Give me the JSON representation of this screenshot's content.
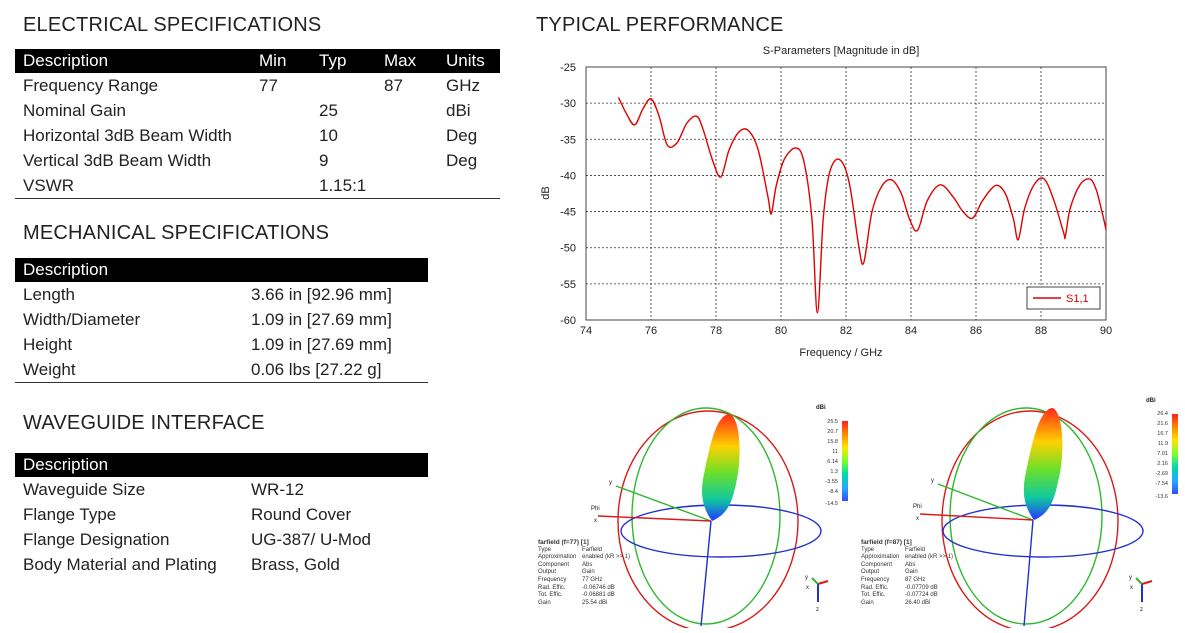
{
  "electrical": {
    "title": "ELECTRICAL SPECIFICATIONS",
    "headers": [
      "Description",
      "Min",
      "Typ",
      "Max",
      "Units"
    ],
    "rows": [
      [
        "Frequency Range",
        "77",
        "",
        "87",
        "GHz"
      ],
      [
        "Nominal Gain",
        "",
        "25",
        "",
        "dBi"
      ],
      [
        "Horizontal 3dB Beam Width",
        "",
        "10",
        "",
        "Deg"
      ],
      [
        "Vertical 3dB Beam Width",
        "",
        "9",
        "",
        "Deg"
      ],
      [
        "VSWR",
        "",
        "1.15:1",
        "",
        ""
      ]
    ]
  },
  "mechanical": {
    "title": "MECHANICAL SPECIFICATIONS",
    "header": "Description",
    "rows": [
      [
        "Length",
        "3.66 in [92.96 mm]"
      ],
      [
        "Width/Diameter",
        "1.09 in [27.69 mm]"
      ],
      [
        "Height",
        "1.09 in [27.69 mm]"
      ],
      [
        "Weight",
        "0.06 lbs [27.22 g]"
      ]
    ]
  },
  "waveguide": {
    "title": "WAVEGUIDE INTERFACE",
    "header": "Description",
    "rows": [
      [
        "Waveguide Size",
        "WR-12"
      ],
      [
        "Flange Type",
        "Round Cover"
      ],
      [
        "Flange Designation",
        "UG-387/ U-Mod"
      ],
      [
        "Body Material and Plating",
        "Brass, Gold"
      ]
    ]
  },
  "performance": {
    "title": "TYPICAL PERFORMANCE"
  },
  "chart_data": {
    "type": "line",
    "title": "S-Parameters [Magnitude in dB]",
    "xlabel": "Frequency / GHz",
    "ylabel": "dB",
    "xlim": [
      74,
      90
    ],
    "ylim": [
      -60,
      -25
    ],
    "xticks": [
      "74",
      "76",
      "78",
      "80",
      "82",
      "84",
      "86",
      "88",
      "90"
    ],
    "yticks": [
      "-25",
      "-30",
      "-35",
      "-40",
      "-45",
      "-50",
      "-55",
      "-60"
    ],
    "grid": true,
    "legend_position": "bottom-right",
    "series": [
      {
        "name": "S1,1",
        "color": "#e00000",
        "x": [
          75.0,
          75.25,
          75.5,
          75.75,
          76.0,
          76.25,
          76.5,
          76.8,
          77.1,
          77.4,
          77.6,
          77.9,
          78.15,
          78.4,
          78.7,
          79.0,
          79.3,
          79.6,
          79.7,
          79.85,
          80.1,
          80.45,
          80.7,
          80.95,
          81.12,
          81.3,
          81.5,
          81.8,
          82.1,
          82.4,
          82.55,
          82.8,
          83.1,
          83.4,
          83.7,
          83.95,
          84.2,
          84.5,
          84.9,
          85.3,
          85.6,
          85.9,
          86.2,
          86.6,
          86.9,
          87.15,
          87.3,
          87.5,
          87.8,
          88.1,
          88.4,
          88.7,
          88.75,
          88.9,
          89.2,
          89.5,
          89.7,
          89.9,
          90.0
        ],
        "y": [
          -29.2,
          -31.5,
          -33.0,
          -30.8,
          -29.4,
          -31.8,
          -35.8,
          -35.5,
          -32.8,
          -31.8,
          -33.6,
          -38.0,
          -40.2,
          -36.5,
          -34.0,
          -33.8,
          -36.5,
          -43.0,
          -45.3,
          -41.5,
          -37.8,
          -36.2,
          -38.0,
          -46.0,
          -59.0,
          -46.0,
          -39.5,
          -37.8,
          -41.0,
          -50.0,
          -52.0,
          -45.0,
          -41.5,
          -40.6,
          -42.5,
          -46.0,
          -47.6,
          -43.5,
          -41.3,
          -43.0,
          -45.0,
          -45.9,
          -43.5,
          -41.4,
          -42.5,
          -46.0,
          -48.9,
          -44.5,
          -41.2,
          -40.5,
          -43.5,
          -48.0,
          -48.4,
          -44.5,
          -41.3,
          -40.5,
          -42.0,
          -45.5,
          -47.5
        ]
      }
    ]
  },
  "farfield_left": {
    "title": "farfield (f=77) [1]",
    "rows": [
      [
        "Type",
        "Farfield"
      ],
      [
        "Approximation",
        "enabled (kR >> 1)"
      ],
      [
        "Component",
        "Abs"
      ],
      [
        "Output",
        "Gain"
      ],
      [
        "Frequency",
        "77 GHz"
      ],
      [
        "Rad. Effic.",
        "-0.06746 dB"
      ],
      [
        "Tot. Effic.",
        "-0.06881 dB"
      ],
      [
        "Gain",
        "25.54 dBi"
      ]
    ],
    "colorbar": {
      "unit": "dBi",
      "ticks": [
        "25.5",
        "20.7",
        "15.8",
        "11",
        "6.14",
        "1.3",
        "-3.55",
        "-8.4",
        "-14.5"
      ]
    },
    "axes": {
      "x": "x",
      "y": "y",
      "z": "z",
      "phi": "Phi"
    }
  },
  "farfield_right": {
    "title": "farfield (f=87) [1]",
    "rows": [
      [
        "Type",
        "Farfield"
      ],
      [
        "Approximation",
        "enabled (kR >> 1)"
      ],
      [
        "Component",
        "Abs"
      ],
      [
        "Output",
        "Gain"
      ],
      [
        "Frequency",
        "87 GHz"
      ],
      [
        "Rad. Effic.",
        "-0.07709 dB"
      ],
      [
        "Tot. Effic.",
        "-0.07724 dB"
      ],
      [
        "Gain",
        "26.40 dBi"
      ]
    ],
    "colorbar": {
      "unit": "dBi",
      "ticks": [
        "26.4",
        "21.6",
        "16.7",
        "11.9",
        "7.01",
        "2.16",
        "-2.69",
        "-7.54",
        "-13.6"
      ]
    },
    "axes": {
      "x": "x",
      "y": "y",
      "z": "z",
      "phi": "Phi"
    }
  }
}
